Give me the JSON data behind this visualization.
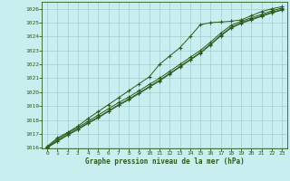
{
  "title": "Graphe pression niveau de la mer (hPa)",
  "bg_color": "#c8eef0",
  "grid_color": "#9ecfcf",
  "line_color": "#2d5a1b",
  "ylim": [
    1016,
    1026.5
  ],
  "xlim": [
    -0.5,
    23.5
  ],
  "yticks": [
    1016,
    1017,
    1018,
    1019,
    1020,
    1021,
    1022,
    1023,
    1024,
    1025,
    1026
  ],
  "xticks": [
    0,
    1,
    2,
    3,
    4,
    5,
    6,
    7,
    8,
    9,
    10,
    11,
    12,
    13,
    14,
    15,
    16,
    17,
    18,
    19,
    20,
    21,
    22,
    23
  ],
  "series": [
    [
      1016.1,
      1016.7,
      1017.1,
      1017.55,
      1018.1,
      1018.6,
      1019.1,
      1019.6,
      1020.1,
      1020.6,
      1021.1,
      1022.0,
      1022.6,
      1023.2,
      1024.0,
      1024.85,
      1025.0,
      1025.05,
      1025.1,
      1025.2,
      1025.5,
      1025.8,
      1026.0,
      1026.15
    ],
    [
      1016.05,
      1016.6,
      1017.05,
      1017.45,
      1017.9,
      1018.35,
      1018.8,
      1019.25,
      1019.65,
      1020.1,
      1020.55,
      1021.0,
      1021.5,
      1022.0,
      1022.5,
      1023.0,
      1023.6,
      1024.25,
      1024.8,
      1025.1,
      1025.35,
      1025.6,
      1025.85,
      1026.05
    ],
    [
      1016.0,
      1016.5,
      1016.95,
      1017.35,
      1017.8,
      1018.2,
      1018.65,
      1019.1,
      1019.5,
      1019.95,
      1020.4,
      1020.85,
      1021.35,
      1021.85,
      1022.35,
      1022.85,
      1023.45,
      1024.1,
      1024.65,
      1025.0,
      1025.25,
      1025.5,
      1025.75,
      1025.95
    ],
    [
      1016.0,
      1016.45,
      1016.9,
      1017.3,
      1017.75,
      1018.15,
      1018.6,
      1019.05,
      1019.45,
      1019.9,
      1020.35,
      1020.8,
      1021.3,
      1021.8,
      1022.3,
      1022.8,
      1023.4,
      1024.05,
      1024.6,
      1024.95,
      1025.2,
      1025.45,
      1025.7,
      1025.9
    ]
  ]
}
